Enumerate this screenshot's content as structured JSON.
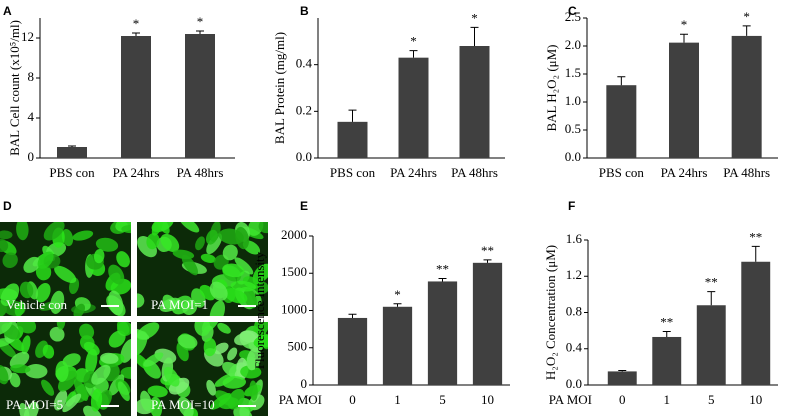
{
  "chart_data": [
    {
      "type": "bar",
      "panel": "A",
      "ylabel": "BAL Cell count (x10⁵/ml)",
      "categories": [
        "PBS con",
        "PA 24hrs",
        "PA 48hrs"
      ],
      "values": [
        1.1,
        12.2,
        12.4
      ],
      "errors": [
        0.1,
        0.3,
        0.3
      ],
      "annotations": [
        null,
        "*",
        "*"
      ],
      "color": "#404040",
      "ylim": [
        0,
        14
      ],
      "yticks": [
        0,
        4,
        8,
        12
      ]
    },
    {
      "type": "bar",
      "panel": "B",
      "ylabel": "BAL Protein (mg/ml)",
      "categories": [
        "PBS con",
        "PA 24hrs",
        "PA 48hrs"
      ],
      "values": [
        0.155,
        0.43,
        0.48
      ],
      "errors": [
        0.05,
        0.03,
        0.08
      ],
      "annotations": [
        null,
        "*",
        "*"
      ],
      "color": "#404040",
      "ylim": [
        0,
        0.6
      ],
      "yticks": [
        {
          "value": 0,
          "label": "0.0"
        },
        {
          "value": 0.2,
          "label": "0.2"
        },
        {
          "value": 0.4,
          "label": "0.4"
        }
      ]
    },
    {
      "type": "bar",
      "panel": "C",
      "ylabel": "BAL H₂O₂ (μM)",
      "categories": [
        "PBS con",
        "PA 24hrs",
        "PA 48hrs"
      ],
      "values": [
        1.3,
        2.06,
        2.18
      ],
      "errors": [
        0.15,
        0.15,
        0.18
      ],
      "annotations": [
        null,
        "*",
        "*"
      ],
      "color": "#404040",
      "ylim": [
        0,
        2.5
      ],
      "yticks": [
        {
          "value": 0,
          "label": "0.0"
        },
        0.5,
        {
          "value": 1,
          "label": "1.0"
        },
        1.5,
        {
          "value": 2,
          "label": "2.0"
        },
        2.5
      ]
    },
    {
      "type": "image",
      "panel": "D",
      "images": [
        "Vehicle con",
        "PA MOI=1",
        "PA MOI=5",
        "PA MOI=10"
      ]
    },
    {
      "type": "bar",
      "panel": "E",
      "ylabel": "Fluorescence Intensity",
      "xlabel": "PA MOI",
      "categories": [
        "0",
        "1",
        "5",
        "10"
      ],
      "values": [
        900,
        1050,
        1390,
        1640
      ],
      "errors": [
        50,
        40,
        40,
        40
      ],
      "annotations": [
        null,
        "*",
        "**",
        "**"
      ],
      "color": "#404040",
      "ylim": [
        0,
        2000
      ],
      "yticks": [
        0,
        500,
        1000,
        1500,
        2000
      ]
    },
    {
      "type": "bar",
      "panel": "F",
      "ylabel": "H₂O₂ Concentration (μM)",
      "xlabel": "PA MOI",
      "categories": [
        "0",
        "1",
        "5",
        "10"
      ],
      "values": [
        0.15,
        0.53,
        0.88,
        1.36
      ],
      "errors": [
        0.01,
        0.06,
        0.15,
        0.17
      ],
      "annotations": [
        null,
        "**",
        "**",
        "**"
      ],
      "color": "#404040",
      "ylim": [
        0,
        1.6
      ],
      "yticks": [
        {
          "value": 0,
          "label": "0.0"
        },
        0.4,
        0.8,
        1.2,
        1.6
      ]
    }
  ]
}
